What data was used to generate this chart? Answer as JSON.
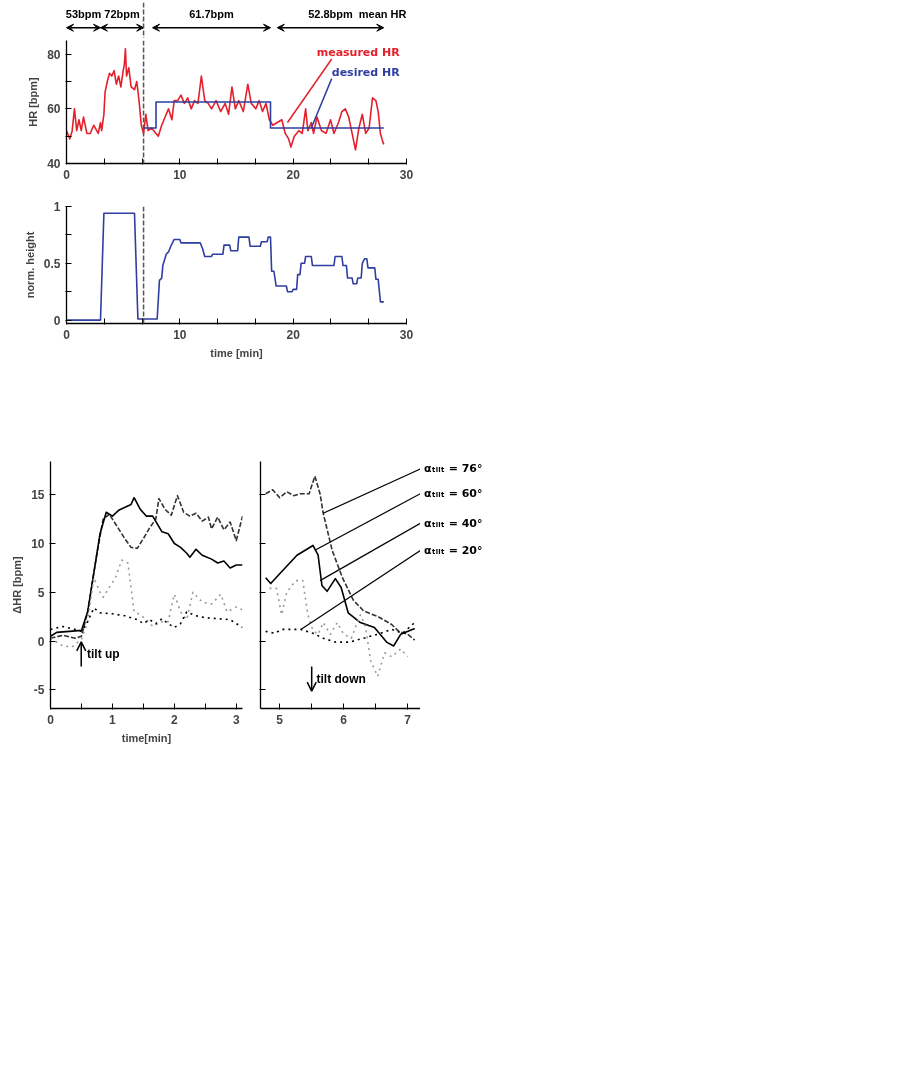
{
  "chart_data": [
    {
      "type": "line",
      "ylabel": "HR [bpm]",
      "xlim": [
        0,
        30
      ],
      "ylim": [
        40,
        85
      ],
      "xticks": [
        0,
        {
          "value": 3.33,
          "label": null
        },
        {
          "value": 6.67,
          "label": null
        },
        10,
        {
          "value": 13.33,
          "label": null
        },
        {
          "value": 16.67,
          "label": null
        },
        20,
        {
          "value": 23.33,
          "label": null
        },
        {
          "value": 26.67,
          "label": null
        },
        30
      ],
      "yticks": [
        40,
        {
          "value": 50,
          "label": null
        },
        60,
        {
          "value": 70,
          "label": null
        },
        80
      ],
      "series": [
        {
          "color": "#e4202c",
          "x": [
            0,
            0.3,
            0.5,
            0.7,
            0.9,
            1.1,
            1.3,
            1.5,
            1.8,
            2.1,
            2.4,
            2.8,
            3.0,
            3.1,
            3.3,
            3.4,
            3.6,
            3.8,
            4.0,
            4.2,
            4.4,
            4.6,
            4.8,
            5.0,
            5.1,
            5.2,
            5.3,
            5.5,
            5.7,
            6.0,
            6.2,
            6.4,
            6.6,
            6.8,
            7.0,
            7.2,
            7.5,
            7.9,
            8.1,
            8.4,
            8.7,
            9.0,
            9.3,
            9.5,
            9.8,
            10.1,
            10.4,
            10.7,
            11.0,
            11.3,
            11.6,
            11.9,
            12.2,
            12.5,
            12.8,
            13.2,
            13.6,
            14.0,
            14.3,
            14.6,
            14.9,
            15.2,
            15.6,
            16.0,
            16.3,
            16.7,
            17.0,
            17.3,
            17.6,
            17.9,
            18.2,
            18.6,
            19.0,
            19.3,
            19.6,
            19.8,
            20.1,
            20.5,
            20.8,
            21.1,
            21.3,
            21.6,
            21.8,
            22.1,
            22.5,
            22.9,
            23.3,
            23.6,
            24.0,
            24.3,
            24.6,
            24.9,
            25.2,
            25.5,
            25.8,
            26.1,
            26.4,
            26.7,
            27.0,
            27.3,
            27.5,
            27.7,
            27.9,
            28.0
          ],
          "values": [
            52,
            49,
            52,
            60,
            52,
            56,
            52,
            57,
            51,
            51,
            54,
            51,
            55,
            52,
            58,
            66,
            70,
            73,
            72,
            74,
            69,
            72,
            68,
            74,
            76,
            82,
            72,
            75,
            68,
            67,
            70,
            63,
            54,
            51,
            58,
            52,
            53,
            51,
            50,
            54,
            57,
            60,
            56,
            63,
            63,
            65,
            62,
            64,
            60,
            63,
            62,
            72,
            63,
            62,
            60,
            63,
            59,
            62,
            58,
            68,
            60,
            63,
            59,
            69,
            62,
            60,
            63,
            59,
            62,
            56,
            54,
            55,
            56,
            51,
            49,
            46,
            50,
            52,
            51,
            60,
            52,
            55,
            51,
            57,
            52,
            51,
            56,
            51,
            55,
            59,
            60,
            57,
            51,
            45,
            53,
            58,
            51,
            53,
            64,
            63,
            59,
            51,
            48,
            47
          ]
        },
        {
          "color": "#2f3ea0",
          "x": [
            6.8,
            7.9,
            7.9,
            18.0,
            18.0,
            28.0
          ],
          "values": [
            53,
            53,
            62.5,
            62.5,
            53,
            53
          ]
        }
      ],
      "ref_lines": [
        {
          "axis": "x",
          "value": 6.8,
          "color": "#555555",
          "line_style": "dashed"
        }
      ],
      "annotations": [
        "53bpm",
        "72bpm",
        "61.7bpm",
        "52.8bpm",
        "mean HR",
        {
          "text": "measured HR",
          "x": 19.5,
          "y": 55
        },
        {
          "text": "desired HR",
          "x": 21.6,
          "y": 53
        }
      ]
    },
    {
      "type": "line",
      "xlabel": "time [min]",
      "ylabel": "norm. height",
      "xlim": [
        0,
        30
      ],
      "ylim": [
        -0.03,
        1
      ],
      "xticks": [
        0,
        {
          "value": 3.33,
          "label": null
        },
        {
          "value": 6.67,
          "label": null
        },
        10,
        {
          "value": 13.33,
          "label": null
        },
        {
          "value": 16.67,
          "label": null
        },
        20,
        {
          "value": 23.33,
          "label": null
        },
        {
          "value": 26.67,
          "label": null
        },
        30
      ],
      "yticks": [
        0,
        {
          "value": 0.25,
          "label": null
        },
        0.5,
        {
          "value": 0.75,
          "label": null
        },
        1
      ],
      "series": [
        {
          "color": "#2f3ea0",
          "x": [
            0,
            3.0,
            3.3,
            6.0,
            6.3,
            8.0,
            8.2,
            8.4,
            8.5,
            8.8,
            9.0,
            9.2,
            9.5,
            10.0,
            10.1,
            11.8,
            12.0,
            12.2,
            12.8,
            12.9,
            13.8,
            13.9,
            14.4,
            14.5,
            15.1,
            15.2,
            16.1,
            16.2,
            17.1,
            17.2,
            17.7,
            17.8,
            18.0,
            18.1,
            18.3,
            18.5,
            19.4,
            19.5,
            19.9,
            20.0,
            20.3,
            20.4,
            20.6,
            20.7,
            21.0,
            21.1,
            21.6,
            21.7,
            23.6,
            23.7,
            24.3,
            24.4,
            24.7,
            24.8,
            25.2,
            25.3,
            25.6,
            25.7,
            26.0,
            26.1,
            26.3,
            26.5,
            26.6,
            27.2,
            27.3,
            27.5,
            27.7,
            28.0
          ],
          "values": [
            0,
            0,
            0.94,
            0.94,
            0.01,
            0.01,
            0.35,
            0.37,
            0.48,
            0.58,
            0.6,
            0.65,
            0.71,
            0.71,
            0.68,
            0.68,
            0.63,
            0.56,
            0.56,
            0.58,
            0.58,
            0.66,
            0.66,
            0.61,
            0.61,
            0.73,
            0.73,
            0.65,
            0.65,
            0.69,
            0.69,
            0.73,
            0.73,
            0.43,
            0.43,
            0.3,
            0.3,
            0.25,
            0.25,
            0.27,
            0.27,
            0.4,
            0.4,
            0.5,
            0.5,
            0.56,
            0.56,
            0.48,
            0.48,
            0.56,
            0.56,
            0.48,
            0.48,
            0.37,
            0.37,
            0.32,
            0.32,
            0.37,
            0.37,
            0.5,
            0.54,
            0.54,
            0.46,
            0.46,
            0.36,
            0.36,
            0.16,
            0.16
          ]
        }
      ],
      "ref_lines": [
        {
          "axis": "x",
          "value": 6.8,
          "color": "#555555",
          "line_style": "dashed"
        }
      ]
    },
    {
      "type": "line",
      "xlabel": "time[min]",
      "ylabel": "ΔHR [bpm]",
      "xlim": [
        0,
        3.1
      ],
      "ylim": [
        -6.9,
        18.4
      ],
      "xticks": [
        0,
        {
          "value": 0.5,
          "label": null
        },
        1,
        {
          "value": 1.5,
          "label": null
        },
        2,
        {
          "value": 2.5,
          "label": null
        },
        3
      ],
      "yticks": [
        -5,
        0,
        5,
        10,
        15
      ],
      "series": [
        {
          "color": "#333333",
          "line_style": "dashed",
          "x": [
            0,
            0.2,
            0.4,
            0.5,
            0.6,
            0.75,
            0.85,
            0.95,
            1.1,
            1.2,
            1.3,
            1.4,
            1.5,
            1.6,
            1.7,
            1.75,
            1.85,
            1.95,
            2.05,
            2.15,
            2.25,
            2.35,
            2.45,
            2.55,
            2.6,
            2.7,
            2.8,
            2.9,
            3.0,
            3.1
          ],
          "values": [
            0.3,
            0.6,
            0.3,
            0.5,
            3,
            9,
            12.5,
            13,
            11.5,
            10.5,
            9.6,
            9.5,
            10.5,
            11.6,
            12.5,
            14.6,
            13.5,
            12.9,
            14.9,
            13.2,
            12.8,
            13.1,
            12.3,
            12.7,
            11.5,
            12.7,
            11.4,
            12.2,
            10.3,
            12.8
          ]
        },
        {
          "color": "#000000",
          "line_style": "solid",
          "x": [
            0,
            0.1,
            0.3,
            0.5,
            0.6,
            0.7,
            0.8,
            0.9,
            1.0,
            1.1,
            1.3,
            1.35,
            1.45,
            1.55,
            1.65,
            1.8,
            1.9,
            2.0,
            2.1,
            2.2,
            2.25,
            2.35,
            2.45,
            2.6,
            2.7,
            2.8,
            2.9,
            3.0,
            3.1
          ],
          "values": [
            0.5,
            0.9,
            1.0,
            1.1,
            3,
            7,
            11,
            13.2,
            12.8,
            13.4,
            14,
            14.7,
            13.5,
            12.8,
            12.8,
            11.2,
            11,
            10,
            9.6,
            9,
            8.6,
            9.4,
            8.8,
            8.4,
            8,
            8.2,
            7.5,
            7.8,
            7.8
          ]
        },
        {
          "color": "#999999",
          "line_style": "dotted",
          "x": [
            0,
            0.2,
            0.35,
            0.5,
            0.6,
            0.7,
            0.8,
            0.85,
            0.95,
            1.05,
            1.15,
            1.25,
            1.35,
            1.45,
            1.55,
            1.65,
            1.8,
            1.9,
            2.0,
            2.1,
            2.2,
            2.3,
            2.45,
            2.6,
            2.75,
            2.85,
            3.0,
            3.1
          ],
          "values": [
            0.3,
            -0.5,
            -0.6,
            0.2,
            2,
            6.5,
            5,
            4.5,
            5.5,
            6.5,
            8.3,
            8,
            3,
            2.7,
            2.2,
            1.5,
            2,
            2,
            4.8,
            3,
            2.2,
            5,
            4,
            3.8,
            4.8,
            3,
            3.5,
            3.2
          ]
        },
        {
          "color": "#000000",
          "line_style": "dotted",
          "x": [
            0,
            0.2,
            0.4,
            0.5,
            0.6,
            0.7,
            0.8,
            1.0,
            1.2,
            1.4,
            1.5,
            1.6,
            1.7,
            1.8,
            1.9,
            2.0,
            2.1,
            2.2,
            2.35,
            2.5,
            2.7,
            2.9,
            3.1
          ],
          "values": [
            1.2,
            1.5,
            1.2,
            1.0,
            2,
            3.4,
            2.9,
            2.8,
            2.6,
            2.2,
            1.8,
            2.2,
            1.8,
            2.3,
            1.8,
            1.4,
            1.8,
            3.0,
            2.6,
            2.4,
            2.3,
            2.2,
            1.4
          ]
        }
      ],
      "annotations": [
        "tilt up"
      ]
    },
    {
      "type": "line",
      "xlim": [
        4.7,
        7.2
      ],
      "ylim": [
        -6.9,
        18.4
      ],
      "tick_labels": "x",
      "yticks": [
        -5,
        0,
        5,
        10,
        15
      ],
      "xticks": [
        5,
        {
          "value": 5.5,
          "label": null
        },
        6,
        {
          "value": 6.5,
          "label": null
        },
        7
      ],
      "series": [
        {
          "color": "#333333",
          "line_style": "dashed",
          "x": [
            4.78,
            4.89,
            5.0,
            5.11,
            5.22,
            5.33,
            5.46,
            5.55,
            5.63,
            5.68,
            5.82,
            5.98,
            6.15,
            6.31,
            6.54,
            6.75,
            6.86,
            7.0,
            7.11
          ],
          "values": [
            15.1,
            15.5,
            14.7,
            15.3,
            14.9,
            15.1,
            15.1,
            16.9,
            15.1,
            13.1,
            9.3,
            6.5,
            4.2,
            3.1,
            2.5,
            1.7,
            1.0,
            0.7,
            0.1
          ]
        },
        {
          "color": "#000000",
          "line_style": "solid",
          "x": [
            4.78,
            4.86,
            5.0,
            5.27,
            5.52,
            5.6,
            5.66,
            5.74,
            5.87,
            5.96,
            6.07,
            6.26,
            6.48,
            6.67,
            6.78,
            6.89,
            7.11
          ],
          "values": [
            6.5,
            5.9,
            6.9,
            8.8,
            9.8,
            8.8,
            5.7,
            5.1,
            6.4,
            5.5,
            2.9,
            1.9,
            1.4,
            -0.1,
            -0.5,
            0.7,
            1.3
          ]
        },
        {
          "color": "#999999",
          "line_style": "dotted",
          "x": [
            4.84,
            4.95,
            5.03,
            5.11,
            5.25,
            5.36,
            5.44,
            5.52,
            5.6,
            5.68,
            5.79,
            5.9,
            6.0,
            6.12,
            6.26,
            6.34,
            6.42,
            6.53,
            6.64,
            6.75,
            6.89,
            7.0
          ],
          "values": [
            5.4,
            5.4,
            2.7,
            5.0,
            6.2,
            6.2,
            2.7,
            1.1,
            0.7,
            1.9,
            0.7,
            1.9,
            0.7,
            0.3,
            2.7,
            1.5,
            -2.0,
            -3.6,
            -1.2,
            -1.6,
            -0.8,
            -1.6
          ]
        },
        {
          "color": "#000000",
          "line_style": "dotted",
          "x": [
            4.78,
            4.92,
            5.03,
            5.14,
            5.33,
            5.52,
            5.68,
            5.87,
            6.09,
            6.31,
            6.53,
            6.75,
            6.92,
            7.11
          ],
          "values": [
            1.0,
            0.8,
            1.2,
            1.2,
            1.2,
            0.8,
            0.3,
            -0.1,
            -0.1,
            0.3,
            0.7,
            1.2,
            0.8,
            1.9
          ]
        }
      ],
      "annotations": [
        {
          "text": "αₜᵢₗₜ = 76°",
          "x": 5.68,
          "y": 13.1
        },
        {
          "text": "αₜᵢₗₜ = 60°",
          "x": 5.55,
          "y": 9.3
        },
        {
          "text": "αₜᵢₗₜ = 40°",
          "x": 5.63,
          "y": 6.2
        },
        {
          "text": "αₜᵢₗₜ = 20°",
          "x": 5.33,
          "y": 1.2
        },
        "tilt down"
      ]
    }
  ]
}
